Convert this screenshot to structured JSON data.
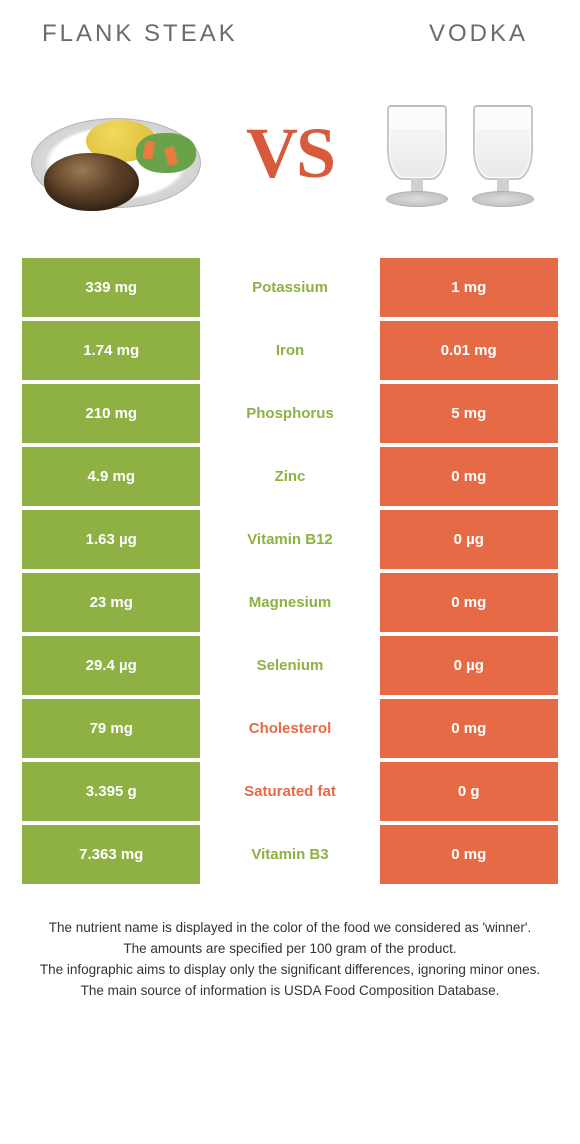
{
  "titles": {
    "left": "FLANK STEAK",
    "right": "VODKA"
  },
  "vs": "VS",
  "colors": {
    "left": "#8fb043",
    "right": "#e66a46",
    "mid_left_text": "#8fb043",
    "mid_right_text": "#e66a46",
    "title_color": "#6b6b6b",
    "vs_color": "#d85a3c"
  },
  "rows": [
    {
      "left": "339 mg",
      "label": "Potassium",
      "right": "1 mg",
      "winner": "left"
    },
    {
      "left": "1.74 mg",
      "label": "Iron",
      "right": "0.01 mg",
      "winner": "left"
    },
    {
      "left": "210 mg",
      "label": "Phosphorus",
      "right": "5 mg",
      "winner": "left"
    },
    {
      "left": "4.9 mg",
      "label": "Zinc",
      "right": "0 mg",
      "winner": "left"
    },
    {
      "left": "1.63 µg",
      "label": "Vitamin B12",
      "right": "0 µg",
      "winner": "left"
    },
    {
      "left": "23 mg",
      "label": "Magnesium",
      "right": "0 mg",
      "winner": "left"
    },
    {
      "left": "29.4 µg",
      "label": "Selenium",
      "right": "0 µg",
      "winner": "left"
    },
    {
      "left": "79 mg",
      "label": "Cholesterol",
      "right": "0 mg",
      "winner": "right"
    },
    {
      "left": "3.395 g",
      "label": "Saturated fat",
      "right": "0 g",
      "winner": "right"
    },
    {
      "left": "7.363 mg",
      "label": "Vitamin B3",
      "right": "0 mg",
      "winner": "left"
    }
  ],
  "footer": [
    "The nutrient name is displayed in the color of the food we considered as 'winner'.",
    "The amounts are specified per 100 gram of the product.",
    "The infographic aims to display only the significant differences, ignoring minor ones.",
    "The main source of information is USDA Food Composition Database."
  ]
}
